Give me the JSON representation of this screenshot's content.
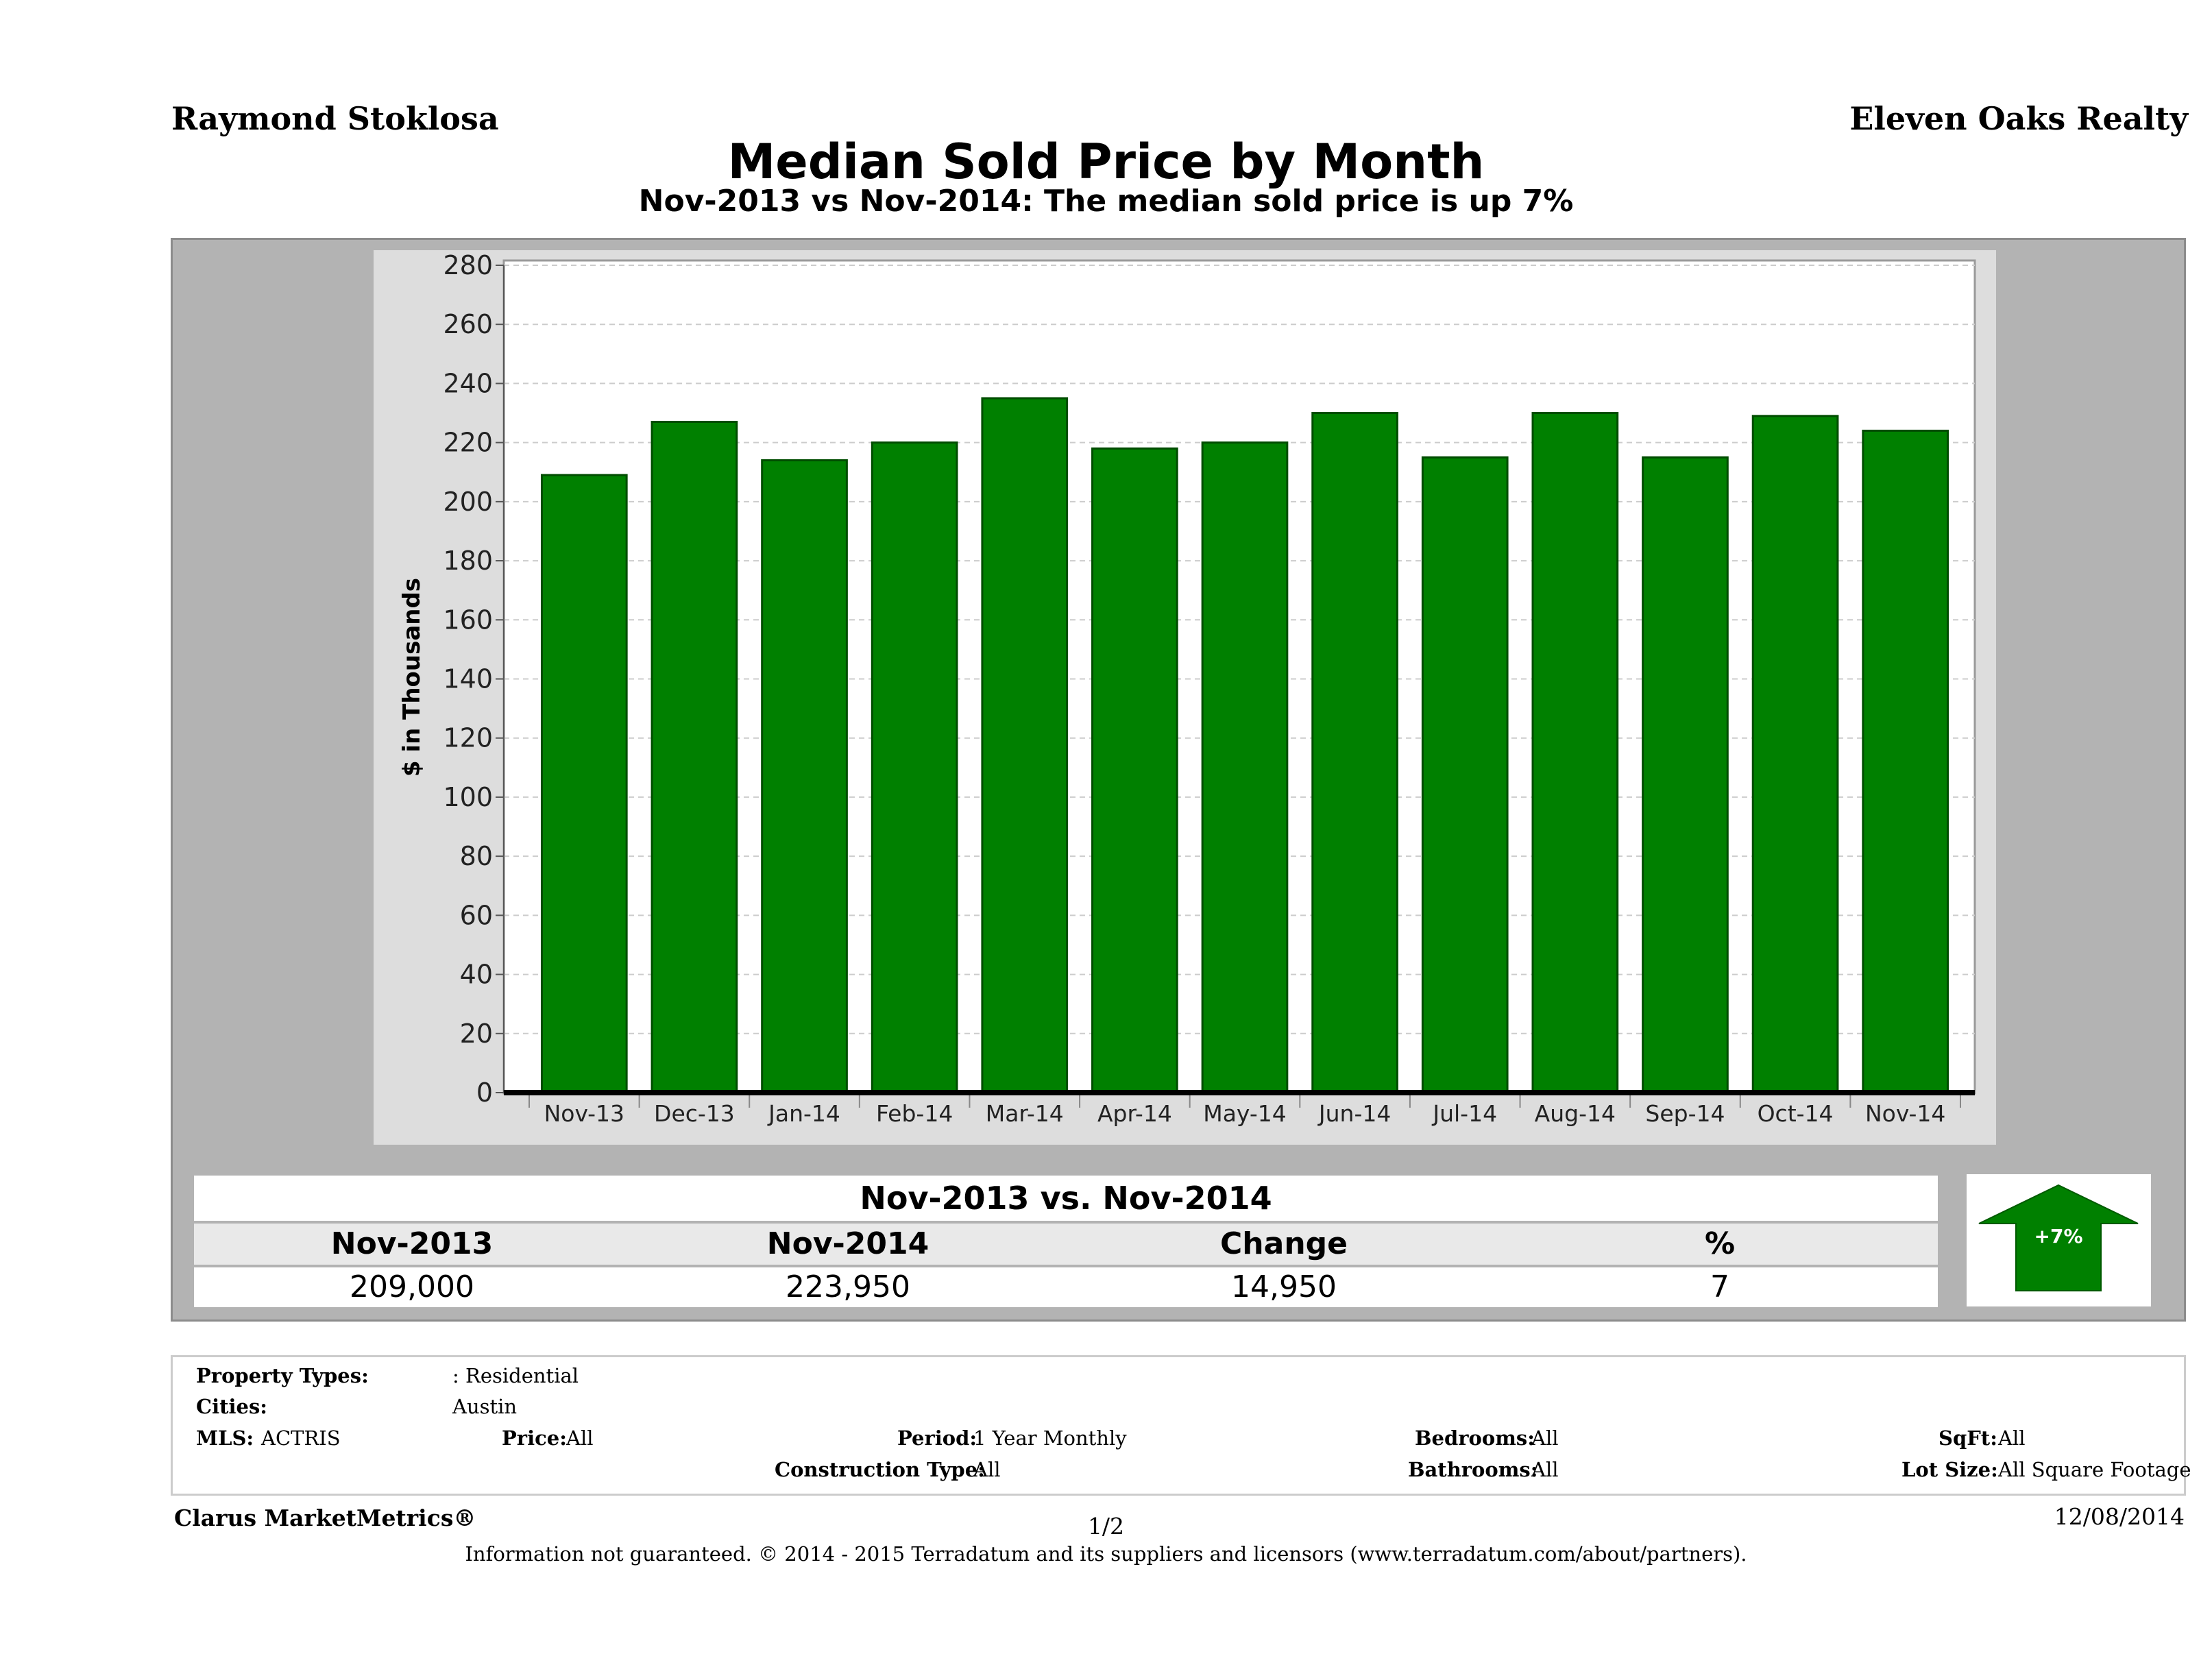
{
  "header": {
    "agent": "Raymond Stoklosa",
    "company": "Eleven Oaks Realty"
  },
  "chart_data": {
    "type": "bar",
    "title": "Median Sold Price by Month",
    "subtitle": "Nov-2013 vs Nov-2014: The median sold price is up 7%",
    "ylabel": "$ in Thousands",
    "xlabel": "",
    "categories": [
      "Nov-13",
      "Dec-13",
      "Jan-14",
      "Feb-14",
      "Mar-14",
      "Apr-14",
      "May-14",
      "Jun-14",
      "Jul-14",
      "Aug-14",
      "Sep-14",
      "Oct-14",
      "Nov-14"
    ],
    "values": [
      209,
      227,
      214,
      220,
      235,
      218,
      220,
      230,
      215,
      230,
      215,
      229,
      224
    ],
    "ylim": [
      0,
      280
    ],
    "yticks": [
      0,
      20,
      40,
      60,
      80,
      100,
      120,
      140,
      160,
      180,
      200,
      220,
      240,
      260,
      280
    ],
    "grid": true,
    "bar_color": "#008000"
  },
  "comparison": {
    "heading": "Nov-2013 vs. Nov-2014",
    "labels": [
      "Nov-2013",
      "Nov-2014",
      "Change",
      "%"
    ],
    "values": [
      "209,000",
      "223,950",
      "14,950",
      "7"
    ],
    "badge": "+7%",
    "badge_color": "#008000"
  },
  "info": {
    "property_types_label": "Property Types:",
    "property_types_value": ": Residential",
    "cities_label": "Cities:",
    "cities_value": "Austin",
    "mls_label": "MLS:",
    "mls_value": "ACTRIS",
    "price_label": "Price:",
    "price_value": "All",
    "period_label": "Period:",
    "period_value": "1 Year Monthly",
    "construction_label": "Construction Type:",
    "construction_value": "All",
    "bedrooms_label": "Bedrooms:",
    "bedrooms_value": "All",
    "bathrooms_label": "Bathrooms:",
    "bathrooms_value": "All",
    "sqft_label": "SqFt:",
    "sqft_value": "All",
    "lot_label": "Lot Size:",
    "lot_value": "All Square Footage"
  },
  "footer": {
    "brand": "Clarus MarketMetrics®",
    "page": "1/2",
    "date": "12/08/2014",
    "disclaimer": "Information not guaranteed. © 2014 - 2015 Terradatum and its suppliers and licensors (www.terradatum.com/about/partners)."
  }
}
